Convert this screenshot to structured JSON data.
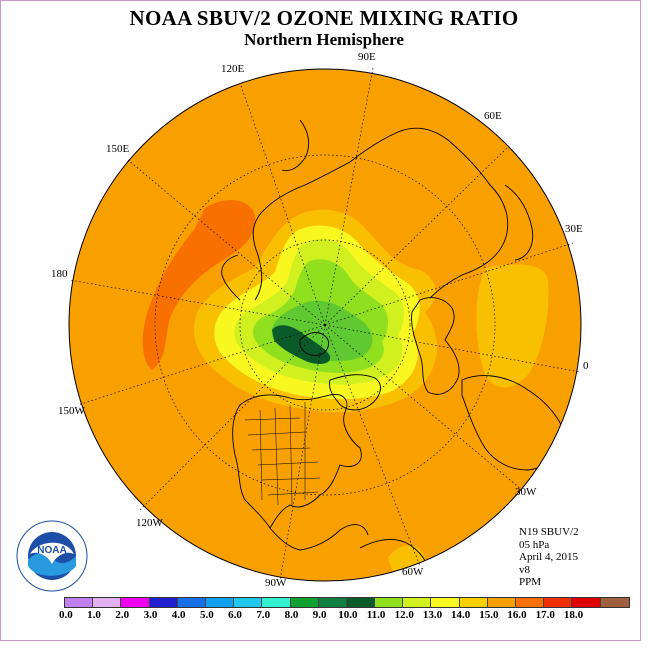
{
  "title": "NOAA SBUV/2 OZONE MIXING RATIO",
  "subtitle": "Northern Hemisphere",
  "longitude_labels": {
    "lon_90e": "90E",
    "lon_60e": "60E",
    "lon_30e": "30E",
    "lon_0": "0",
    "lon_30w": "30W",
    "lon_60w": "60W",
    "lon_90w": "90W",
    "lon_120w": "120W",
    "lon_150w": "150W",
    "lon_180": "180",
    "lon_150e": "150E",
    "lon_120e": "120E"
  },
  "info": {
    "satellite": "N19 SBUV/2",
    "pressure": "05 hPa",
    "date": "April 4, 2015",
    "version": "v8",
    "units": "PPM"
  },
  "logo_text": "NOAA",
  "colorbar": {
    "colors": [
      "#c080f0",
      "#e0b0f0",
      "#f000f0",
      "#2020d0",
      "#1870e8",
      "#10a0f0",
      "#20c8f0",
      "#30f0d0",
      "#10a030",
      "#108040",
      "#0a5a2a",
      "#90e020",
      "#d0f020",
      "#f8f820",
      "#f8d000",
      "#f8a000",
      "#f87000",
      "#f03000",
      "#e00000",
      "#a06040"
    ],
    "ticks": [
      "0.0",
      "1.0",
      "2.0",
      "3.0",
      "4.0",
      "5.0",
      "6.0",
      "7.0",
      "8.0",
      "9.0",
      "10.0",
      "11.0",
      "12.0",
      "13.0",
      "14.0",
      "15.0",
      "16.0",
      "17.0",
      "18.0"
    ]
  },
  "field_colors": {
    "background": "#f8a000",
    "band_14_15": "#f8c000",
    "band_13_14": "#f8f820",
    "band_12_13": "#d0f020",
    "band_11_12": "#90e020",
    "band_10_11": "#60c830",
    "band_9_10": "#0a5a2a",
    "band_15_16": "#f87000"
  }
}
